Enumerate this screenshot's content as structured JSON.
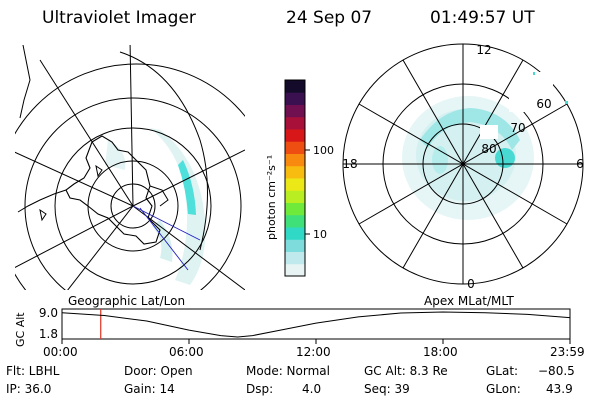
{
  "header": {
    "instrument": "Ultraviolet Imager",
    "date": "24 Sep 07",
    "time": "01:49:57 UT"
  },
  "colorbar": {
    "unit_label": "photon cm⁻²s⁻¹",
    "ticks": [
      "100",
      "10"
    ],
    "scale": "log",
    "colors": [
      "#e8f4f4",
      "#bfe9ec",
      "#7fdcdc",
      "#2fd9c6",
      "#3fe07a",
      "#6fea3a",
      "#b8ee22",
      "#ece818",
      "#f8bc10",
      "#f88a10",
      "#ee4e12",
      "#d81818",
      "#a8103a",
      "#701050",
      "#3a1050",
      "#140a2a"
    ]
  },
  "left_map": {
    "label": "Geographic Lat/Lon"
  },
  "right_map": {
    "label": "Apex MLat/MLT",
    "mlt_labels": {
      "top": "12",
      "left": "18",
      "right": "6",
      "bottom": "0"
    },
    "lat_labels": [
      "60",
      "70",
      "80"
    ]
  },
  "chart_data": {
    "type": "line",
    "title": "",
    "ylabel": "GC Alt",
    "y_ticks": [
      "9.0",
      "1.8"
    ],
    "ylim": [
      1.8,
      9.0
    ],
    "x_ticks": [
      "00:00",
      "06:00",
      "12:00",
      "18:00",
      "23:59"
    ],
    "xlim": [
      0,
      24
    ],
    "series": [
      {
        "x": [
          0,
          2,
          4,
          6,
          7.5,
          8.3,
          9,
          10.5,
          12,
          14,
          16,
          18,
          20,
          22,
          23.98
        ],
        "values": [
          8.8,
          8.0,
          6.4,
          3.8,
          2.2,
          1.8,
          2.2,
          4.0,
          5.8,
          7.6,
          8.7,
          9.0,
          8.8,
          8.3,
          7.4
        ]
      }
    ],
    "marker_x": 1.83,
    "marker_color": "#e03020"
  },
  "footer": {
    "filter": "Flt: LBHL",
    "ip": "IP: 36.0",
    "door": "Door: Open",
    "gain": "Gain: 14",
    "mode": "Mode: Normal",
    "dsp_label": "Dsp:",
    "dsp_value": "4.0",
    "gc_alt": "GC Alt: 8.3 Re",
    "seq": "Seq: 39",
    "glat_label": "GLat:",
    "glat_value": "−80.5",
    "glon_label": "GLon:",
    "glon_value": "43.9"
  }
}
